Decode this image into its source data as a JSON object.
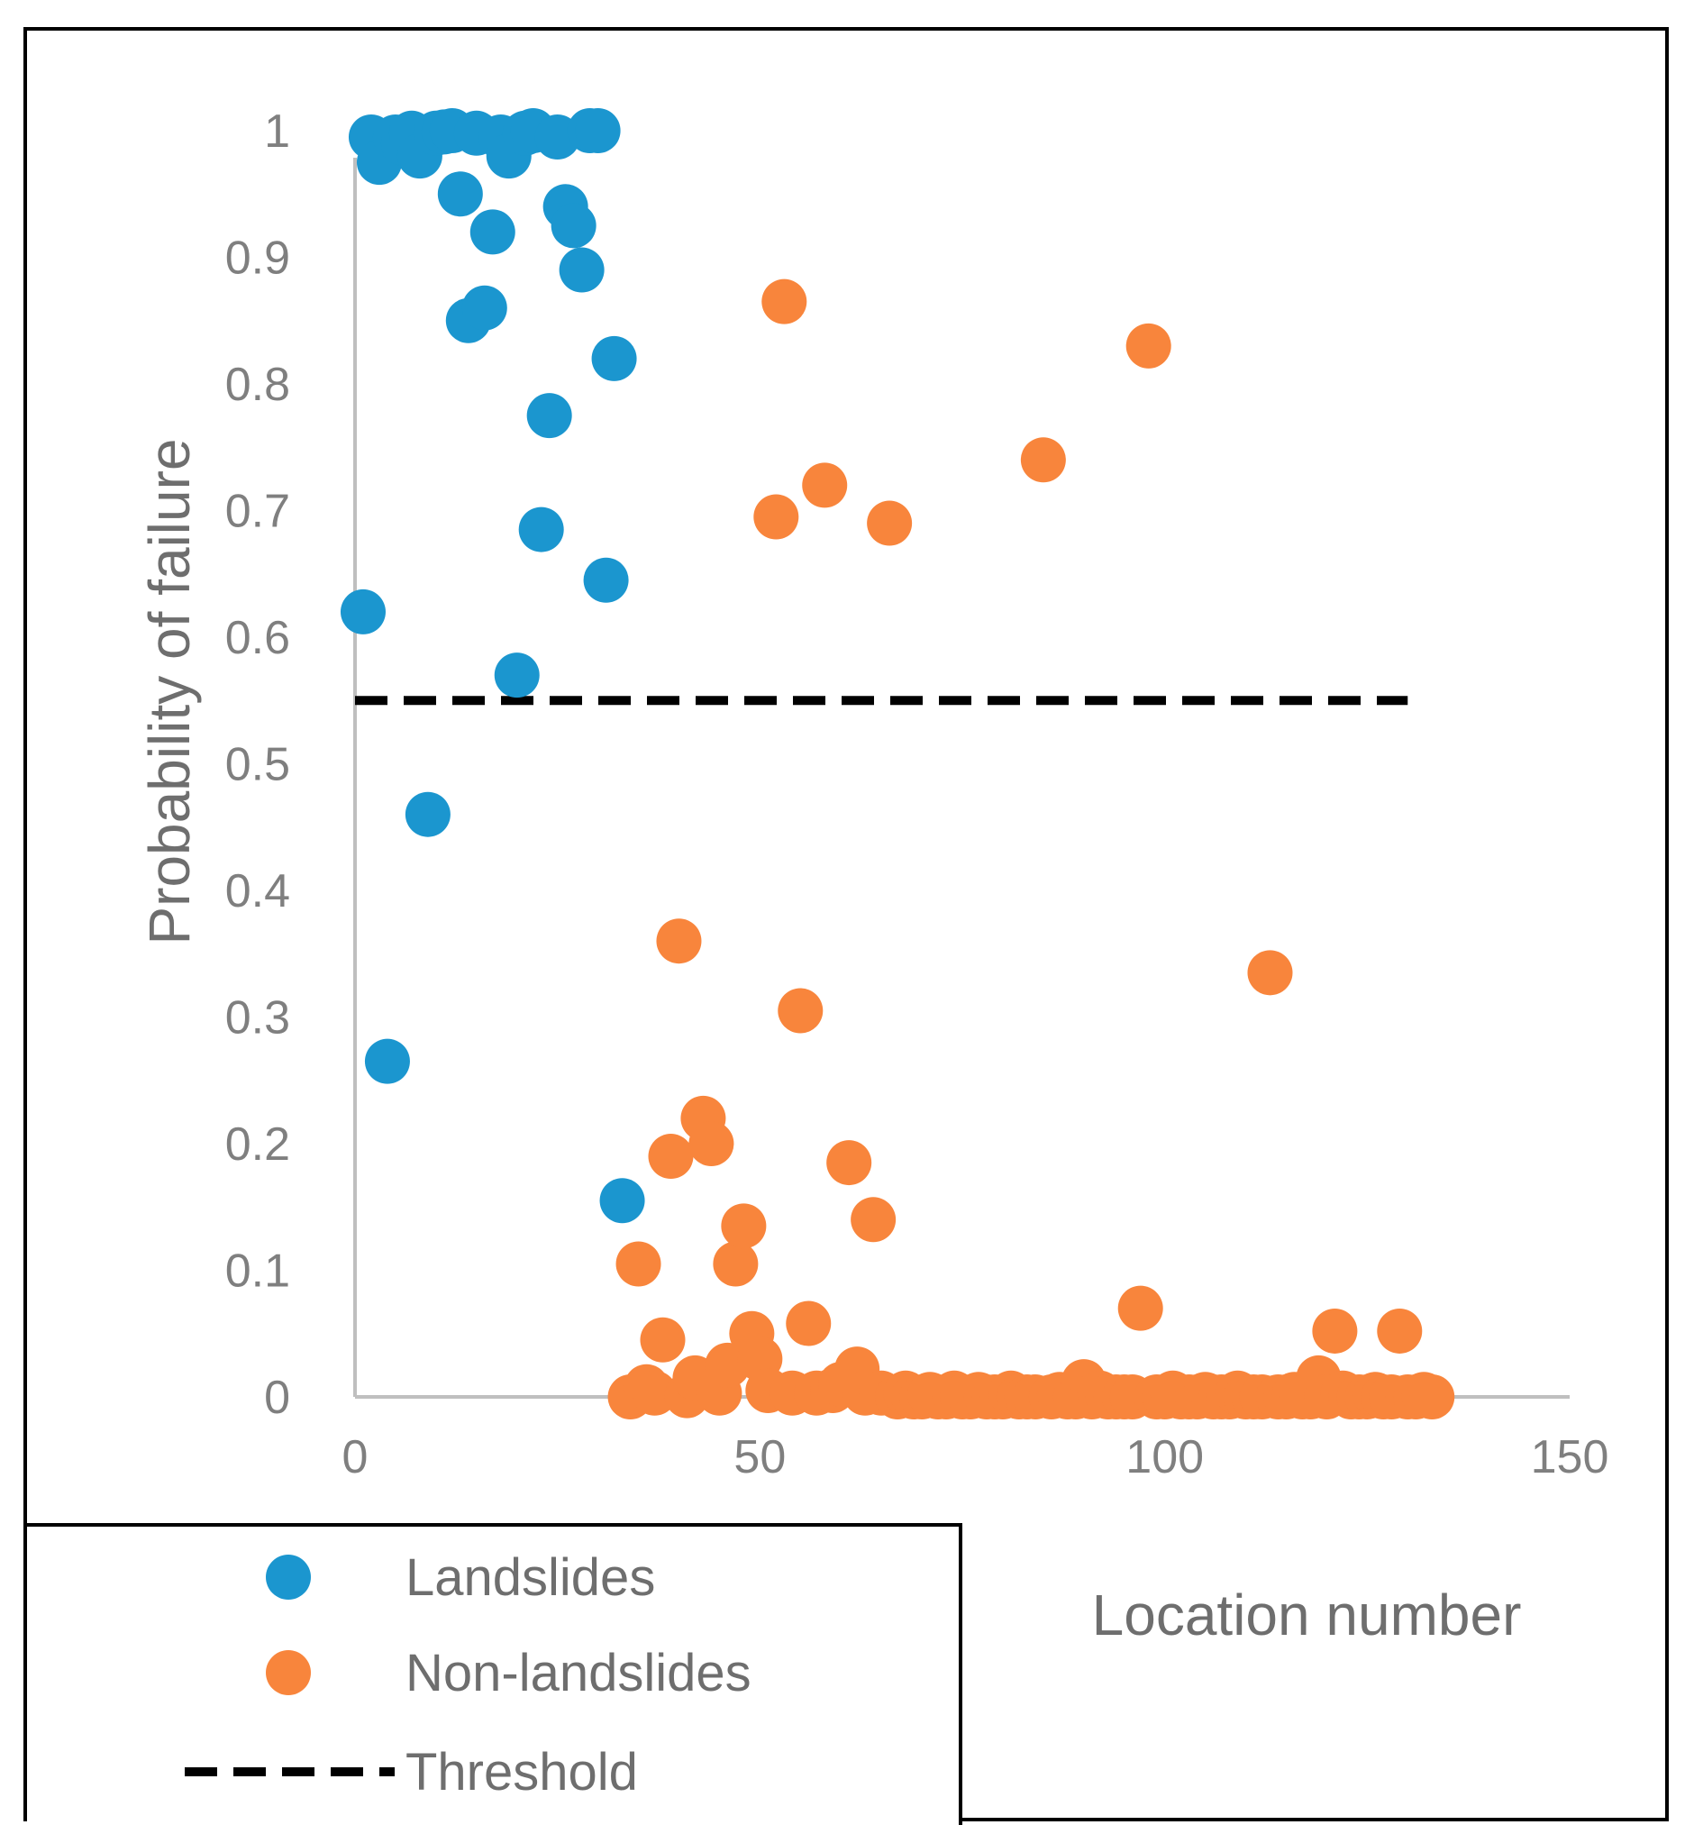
{
  "chart_data": {
    "type": "scatter",
    "title": "",
    "xlabel": "Location number",
    "ylabel": "Probability of failure",
    "xlim": [
      0,
      150
    ],
    "ylim": [
      0,
      1
    ],
    "xticks": [
      "0",
      "50",
      "100",
      "150"
    ],
    "yticks": [
      "0",
      "0.1",
      "0.2",
      "0.3",
      "0.4",
      "0.5",
      "0.6",
      "0.7",
      "0.8",
      "0.9",
      "1"
    ],
    "grid": false,
    "legend_position": "bottom-left",
    "colors": {
      "landslides": "#1b96cf",
      "non_landslides": "#f8853c",
      "threshold": "#000000"
    },
    "series": [
      {
        "name": "Landslides",
        "marker": "circle",
        "x": [
          1,
          2,
          3,
          4,
          5,
          6,
          7,
          8,
          9,
          10,
          11,
          12,
          13,
          14,
          15,
          16,
          17,
          18,
          19,
          20,
          21,
          22,
          23,
          24,
          25,
          26,
          27,
          28,
          29,
          30,
          31,
          32,
          33
        ],
        "y": [
          0.62,
          0.995,
          0.975,
          0.265,
          0.995,
          0.99,
          0.998,
          0.98,
          0.46,
          0.998,
          0.999,
          1.0,
          0.95,
          0.85,
          0.998,
          0.86,
          0.92,
          0.995,
          0.98,
          0.57,
          0.998,
          1.0,
          0.685,
          0.775,
          0.995,
          0.94,
          0.925,
          0.89,
          1.0,
          1.0,
          0.645,
          0.82,
          0.155
        ]
      },
      {
        "name": "Non-landslides",
        "marker": "circle",
        "x": [
          34,
          35,
          36,
          37,
          38,
          39,
          40,
          41,
          42,
          43,
          44,
          45,
          46,
          47,
          48,
          49,
          50,
          51,
          52,
          53,
          54,
          55,
          56,
          57,
          58,
          59,
          60,
          61,
          62,
          63,
          64,
          65,
          66,
          67,
          68,
          69,
          70,
          71,
          72,
          73,
          74,
          75,
          76,
          77,
          78,
          79,
          80,
          81,
          82,
          83,
          84,
          85,
          86,
          87,
          88,
          89,
          90,
          91,
          92,
          93,
          94,
          95,
          96,
          97,
          98,
          99,
          100,
          101,
          102,
          103,
          104,
          105,
          106,
          107,
          108,
          109,
          110,
          111,
          112,
          113,
          114,
          115,
          116,
          117,
          118,
          119,
          120,
          121,
          122,
          123,
          124,
          125,
          126,
          127,
          128,
          129,
          130,
          131,
          132,
          133
        ],
        "y": [
          0.0,
          0.105,
          0.008,
          0.003,
          0.045,
          0.19,
          0.36,
          0.001,
          0.015,
          0.22,
          0.2,
          0.003,
          0.025,
          0.105,
          0.135,
          0.05,
          0.03,
          0.005,
          0.695,
          0.865,
          0.003,
          0.305,
          0.058,
          0.003,
          0.72,
          0.005,
          0.01,
          0.185,
          0.022,
          0.003,
          0.14,
          0.003,
          0.69,
          0.0,
          0.003,
          0.0,
          0.0,
          0.002,
          0.0,
          0.0,
          0.003,
          0.0,
          0.0,
          0.002,
          0.0,
          0.0,
          0.0,
          0.003,
          0.0,
          0.0,
          0.0,
          0.74,
          0.0,
          0.002,
          0.0,
          0.0,
          0.012,
          0.0,
          0.003,
          0.0,
          0.0,
          0.0,
          0.0,
          0.07,
          0.83,
          0.0,
          0.0,
          0.003,
          0.0,
          0.0,
          0.0,
          0.002,
          0.0,
          0.0,
          0.0,
          0.003,
          0.0,
          0.0,
          0.0,
          0.335,
          0.0,
          0.0,
          0.002,
          0.0,
          0.0,
          0.015,
          0.0,
          0.052,
          0.003,
          0.0,
          0.0,
          0.0,
          0.002,
          0.0,
          0.0,
          0.052,
          0.0,
          0.0,
          0.002,
          0.0
        ]
      },
      {
        "name": "Threshold",
        "type": "line",
        "style": "dashed",
        "x": [
          0,
          130
        ],
        "y": [
          0.55,
          0.55
        ]
      }
    ]
  }
}
